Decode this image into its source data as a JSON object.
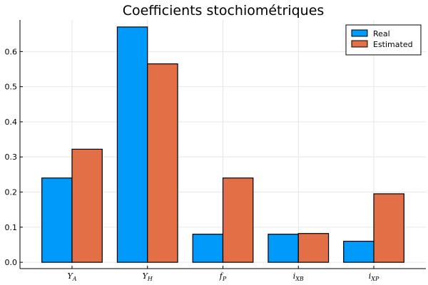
{
  "chart_data": {
    "type": "bar",
    "title": "Coefficients stochiométriques",
    "xlabel": "",
    "ylabel": "",
    "categories": [
      {
        "base": "Y",
        "sub": "A"
      },
      {
        "base": "Y",
        "sub": "H"
      },
      {
        "base": "f",
        "sub": "P"
      },
      {
        "base": "i",
        "sub": "XB"
      },
      {
        "base": "i",
        "sub": "XP"
      }
    ],
    "series": [
      {
        "name": "Real",
        "color": "#009AFA",
        "values": [
          0.24,
          0.67,
          0.08,
          0.08,
          0.06
        ]
      },
      {
        "name": "Estimated",
        "color": "#E26F46",
        "values": [
          0.322,
          0.565,
          0.24,
          0.082,
          0.195
        ]
      }
    ],
    "yticks": [
      "0.0",
      "0.1",
      "0.2",
      "0.3",
      "0.4",
      "0.5",
      "0.6"
    ],
    "ylim": [
      -0.018,
      0.69
    ],
    "grid": true,
    "legend": "top-right"
  }
}
